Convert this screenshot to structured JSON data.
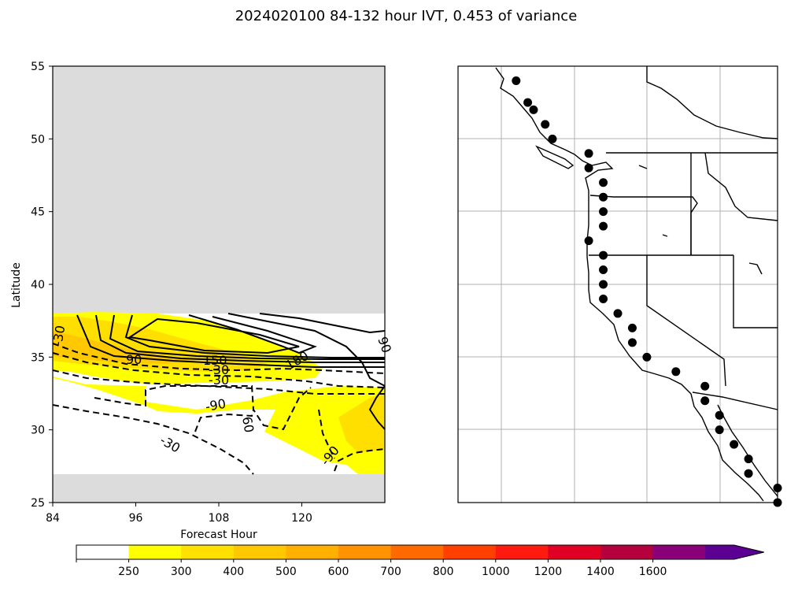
{
  "title": "2024020100 84-132 hour IVT, 0.453 of variance",
  "chart_data": [
    {
      "type": "heatmap",
      "panel": "hovmoller",
      "xlabel": "Forecast Hour",
      "ylabel": "Latitude",
      "xlim": [
        84,
        132
      ],
      "ylim": [
        25,
        55
      ],
      "xticks": [
        "84",
        "96",
        "108",
        "120"
      ],
      "yticks": [
        "25",
        "30",
        "35",
        "40",
        "45",
        "50",
        "55"
      ],
      "no_data_color": "#dcdcdc",
      "data_lat_range": [
        27,
        38
      ],
      "contour_labels": [
        "-30",
        "60",
        "90",
        "-90",
        "-30",
        "150",
        "-30",
        "180",
        "90",
        "-90",
        "-60",
        "-60",
        "-30"
      ]
    },
    {
      "type": "scatter",
      "panel": "map",
      "region": "US West Coast",
      "grid": true,
      "points": [
        {
          "lon": -131.0,
          "lat": 54.0
        },
        {
          "lon": -130.2,
          "lat": 52.5
        },
        {
          "lon": -129.8,
          "lat": 52.0
        },
        {
          "lon": -129.0,
          "lat": 51.0
        },
        {
          "lon": -128.5,
          "lat": 50.0
        },
        {
          "lon": -126.0,
          "lat": 49.0
        },
        {
          "lon": -126.0,
          "lat": 48.0
        },
        {
          "lon": -125.0,
          "lat": 47.0
        },
        {
          "lon": -125.0,
          "lat": 46.0
        },
        {
          "lon": -125.0,
          "lat": 45.0
        },
        {
          "lon": -125.0,
          "lat": 44.0
        },
        {
          "lon": -126.0,
          "lat": 43.0
        },
        {
          "lon": -125.0,
          "lat": 42.0
        },
        {
          "lon": -125.0,
          "lat": 41.0
        },
        {
          "lon": -125.0,
          "lat": 40.0
        },
        {
          "lon": -125.0,
          "lat": 39.0
        },
        {
          "lon": -124.0,
          "lat": 38.0
        },
        {
          "lon": -123.0,
          "lat": 37.0
        },
        {
          "lon": -123.0,
          "lat": 36.0
        },
        {
          "lon": -122.0,
          "lat": 35.0
        },
        {
          "lon": -120.0,
          "lat": 34.0
        },
        {
          "lon": -118.0,
          "lat": 33.0
        },
        {
          "lon": -118.0,
          "lat": 32.0
        },
        {
          "lon": -117.0,
          "lat": 31.0
        },
        {
          "lon": -117.0,
          "lat": 30.0
        },
        {
          "lon": -116.0,
          "lat": 29.0
        },
        {
          "lon": -115.0,
          "lat": 28.0
        },
        {
          "lon": -115.0,
          "lat": 27.0
        },
        {
          "lon": -113.0,
          "lat": 26.0
        },
        {
          "lon": -113.0,
          "lat": 25.0
        }
      ]
    }
  ],
  "colorbar": {
    "boundaries": [
      "250",
      "300",
      "400",
      "500",
      "600",
      "700",
      "800",
      "1000",
      "1200",
      "1400",
      "1600"
    ],
    "colors": [
      "#ffffff",
      "#ffff00",
      "#ffe000",
      "#ffc800",
      "#ffb000",
      "#ff9400",
      "#ff6a00",
      "#ff4000",
      "#ff1a10",
      "#e00024",
      "#b4003c",
      "#8a0078",
      "#5c0094"
    ]
  }
}
